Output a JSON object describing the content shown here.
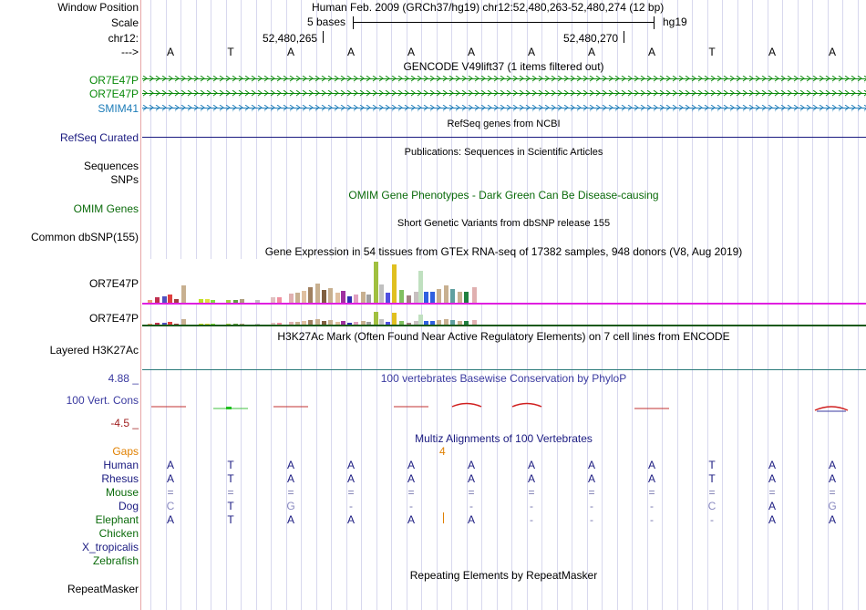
{
  "header": {
    "window_position_label": "Window Position",
    "window_position_value": "Human Feb. 2009 (GRCh37/hg19)   chr12:52,480,263-52,480,274 (12 bp)",
    "scale_label": "Scale",
    "scale_value": "5 bases",
    "scale_assembly": "hg19",
    "chrom_label": "chr12:",
    "pos_left": "52,480,265",
    "pos_right": "52,480,270",
    "strand_label": "--->",
    "bases": [
      "A",
      "T",
      "A",
      "A",
      "A",
      "A",
      "A",
      "A",
      "A",
      "T",
      "A",
      "A"
    ]
  },
  "tracks": {
    "gencode_title": "GENCODE V49lift37 (1 items filtered out)",
    "gencode_items": [
      "OR7E47P",
      "OR7E47P",
      "SMIM41"
    ],
    "refseq_title": "RefSeq genes from NCBI",
    "refseq_label": "RefSeq Curated",
    "pubs_title": "Publications: Sequences in Scientific Articles",
    "sequences_label": "Sequences",
    "snps_label": "SNPs",
    "omim_title": "OMIM Gene Phenotypes - Dark Green Can Be Disease-causing",
    "omim_label": "OMIM Genes",
    "dbsnp_title": "Short Genetic Variants from dbSNP release 155",
    "dbsnp_label": "Common dbSNP(155)",
    "gtex_title": "Gene Expression in 54 tissues from GTEx RNA-seq of 17382 samples, 948 donors (V8, Aug 2019)",
    "gtex_labels": [
      "OR7E47P",
      "OR7E47P"
    ],
    "h3k27ac_title": "H3K27Ac Mark (Often Found Near Active Regulatory Elements) on 7 cell lines from ENCODE",
    "h3k27ac_label": "Layered H3K27Ac",
    "cons_title": "100 vertebrates Basewise Conservation by PhyloP",
    "cons_label": "100 Vert. Cons",
    "cons_max": "4.88 _",
    "cons_min": "-4.5 _",
    "multiz_title": "Multiz Alignments of 100 Vertebrates",
    "gaps_label": "Gaps",
    "gaps_value": "4",
    "species": [
      {
        "name": "Human",
        "bases": [
          "A",
          "T",
          "A",
          "A",
          "A",
          "A",
          "A",
          "A",
          "A",
          "T",
          "A",
          "A"
        ]
      },
      {
        "name": "Rhesus",
        "bases": [
          "A",
          "T",
          "A",
          "A",
          "A",
          "A",
          "A",
          "A",
          "A",
          "T",
          "A",
          "A"
        ]
      },
      {
        "name": "Mouse",
        "bases": [
          "=",
          "=",
          "=",
          "=",
          "=",
          "=",
          "=",
          "=",
          "=",
          "=",
          "=",
          "="
        ]
      },
      {
        "name": "Dog",
        "bases": [
          "C",
          "T",
          "G",
          "-",
          "-",
          "-",
          "-",
          "-",
          "-",
          "C",
          "A",
          "G"
        ]
      },
      {
        "name": "Elephant",
        "bases": [
          "A",
          "T",
          "A",
          "A",
          "A",
          "A",
          "-",
          "-",
          "-",
          "-",
          "A",
          "A"
        ]
      },
      {
        "name": "Chicken",
        "bases": []
      },
      {
        "name": "X_tropicalis",
        "bases": []
      },
      {
        "name": "Zebrafish",
        "bases": []
      }
    ],
    "rmsk_title": "Repeating Elements by RepeatMasker",
    "rmsk_label": "RepeatMasker"
  },
  "colors": {
    "gencode_green": "#0b8a0b",
    "smim_blue": "#1c7cb8",
    "navy": "#1a1a80",
    "omim_green": "#0b6b0b",
    "orange": "#e08000",
    "gtex_magenta": "#e020e0",
    "cons_blue": "#3a3aa0",
    "cons_red": "#a02020"
  }
}
